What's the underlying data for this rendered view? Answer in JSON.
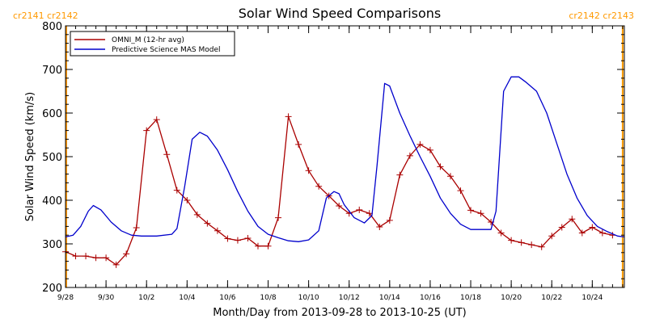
{
  "chart_data": {
    "type": "line",
    "title": "Solar Wind Speed Comparisons",
    "xlabel": "Month/Day from 2013-09-28 to 2013-10-25 (UT)",
    "ylabel": "Solar Wind Speed (km/s)",
    "xlim": [
      "2013-09-28T00:00",
      "2013-10-25T14:00"
    ],
    "ylim": [
      200,
      800
    ],
    "x_ticks": [
      {
        "date": "2013-09-28",
        "label": "9/28"
      },
      {
        "date": "2013-09-30",
        "label": "9/30"
      },
      {
        "date": "2013-10-02",
        "label": "10/2"
      },
      {
        "date": "2013-10-04",
        "label": "10/4"
      },
      {
        "date": "2013-10-06",
        "label": "10/6"
      },
      {
        "date": "2013-10-08",
        "label": "10/8"
      },
      {
        "date": "2013-10-10",
        "label": "10/10"
      },
      {
        "date": "2013-10-12",
        "label": "10/12"
      },
      {
        "date": "2013-10-14",
        "label": "10/14"
      },
      {
        "date": "2013-10-16",
        "label": "10/16"
      },
      {
        "date": "2013-10-18",
        "label": "10/18"
      },
      {
        "date": "2013-10-20",
        "label": "10/20"
      },
      {
        "date": "2013-10-22",
        "label": "10/22"
      },
      {
        "date": "2013-10-24",
        "label": "10/24"
      }
    ],
    "y_ticks": [
      200,
      300,
      400,
      500,
      600,
      700,
      800
    ],
    "grid": false,
    "legend_position": "top-left",
    "carrington_markers": [
      {
        "date": "2013-09-28T00:00",
        "label": "cr2141 cr2142",
        "label_side": "left",
        "color": "#ff9900"
      },
      {
        "date": "2013-10-25T12:00",
        "label": "cr2142 cr2143",
        "label_side": "right",
        "color": "#ff9900"
      }
    ],
    "series": [
      {
        "name": "OMNI_M (12-hr avg)",
        "color": "#aa0000",
        "marker": "plus",
        "points": [
          [
            "2013-09-28T00:00",
            282
          ],
          [
            "2013-09-28T12:00",
            272
          ],
          [
            "2013-09-29T00:00",
            272
          ],
          [
            "2013-09-29T12:00",
            268
          ],
          [
            "2013-09-30T00:00",
            268
          ],
          [
            "2013-09-30T12:00",
            252
          ],
          [
            "2013-10-01T00:00",
            277
          ],
          [
            "2013-10-01T12:00",
            337
          ],
          [
            "2013-10-02T00:00",
            560
          ],
          [
            "2013-10-02T12:00",
            585
          ],
          [
            "2013-10-03T00:00",
            505
          ],
          [
            "2013-10-03T12:00",
            423
          ],
          [
            "2013-10-04T00:00",
            400
          ],
          [
            "2013-10-04T12:00",
            367
          ],
          [
            "2013-10-05T00:00",
            347
          ],
          [
            "2013-10-05T12:00",
            330
          ],
          [
            "2013-10-06T00:00",
            312
          ],
          [
            "2013-10-06T12:00",
            308
          ],
          [
            "2013-10-07T00:00",
            313
          ],
          [
            "2013-10-07T12:00",
            295
          ],
          [
            "2013-10-08T00:00",
            295
          ],
          [
            "2013-10-08T12:00",
            360
          ],
          [
            "2013-10-09T00:00",
            592
          ],
          [
            "2013-10-09T12:00",
            528
          ],
          [
            "2013-10-10T00:00",
            468
          ],
          [
            "2013-10-10T12:00",
            432
          ],
          [
            "2013-10-11T00:00",
            410
          ],
          [
            "2013-10-11T12:00",
            387
          ],
          [
            "2013-10-12T00:00",
            370
          ],
          [
            "2013-10-12T12:00",
            378
          ],
          [
            "2013-10-13T00:00",
            370
          ],
          [
            "2013-10-13T12:00",
            339
          ],
          [
            "2013-10-14T00:00",
            354
          ],
          [
            "2013-10-14T12:00",
            458
          ],
          [
            "2013-10-15T00:00",
            502
          ],
          [
            "2013-10-15T12:00",
            528
          ],
          [
            "2013-10-16T00:00",
            515
          ],
          [
            "2013-10-16T12:00",
            477
          ],
          [
            "2013-10-17T00:00",
            455
          ],
          [
            "2013-10-17T12:00",
            422
          ],
          [
            "2013-10-18T00:00",
            377
          ],
          [
            "2013-10-18T12:00",
            370
          ],
          [
            "2013-10-19T00:00",
            350
          ],
          [
            "2013-10-19T12:00",
            325
          ],
          [
            "2013-10-20T00:00",
            308
          ],
          [
            "2013-10-20T12:00",
            303
          ],
          [
            "2013-10-21T00:00",
            298
          ],
          [
            "2013-10-21T12:00",
            293
          ],
          [
            "2013-10-22T00:00",
            318
          ],
          [
            "2013-10-22T12:00",
            338
          ],
          [
            "2013-10-23T00:00",
            357
          ],
          [
            "2013-10-23T12:00",
            325
          ],
          [
            "2013-10-24T00:00",
            338
          ],
          [
            "2013-10-24T12:00",
            325
          ],
          [
            "2013-10-25T00:00",
            320
          ]
        ]
      },
      {
        "name": "Predictive Science MAS Model",
        "color": "#0000cc",
        "marker": "none",
        "points": [
          [
            "2013-09-28T00:00",
            316
          ],
          [
            "2013-09-28T09:00",
            320
          ],
          [
            "2013-09-28T18:00",
            340
          ],
          [
            "2013-09-29T03:00",
            375
          ],
          [
            "2013-09-29T09:00",
            388
          ],
          [
            "2013-09-29T18:00",
            378
          ],
          [
            "2013-09-30T06:00",
            350
          ],
          [
            "2013-09-30T18:00",
            330
          ],
          [
            "2013-10-01T06:00",
            320
          ],
          [
            "2013-10-01T18:00",
            318
          ],
          [
            "2013-10-02T12:00",
            318
          ],
          [
            "2013-10-03T06:00",
            322
          ],
          [
            "2013-10-03T12:00",
            335
          ],
          [
            "2013-10-03T21:00",
            430
          ],
          [
            "2013-10-04T06:00",
            540
          ],
          [
            "2013-10-04T15:00",
            556
          ],
          [
            "2013-10-05T00:00",
            547
          ],
          [
            "2013-10-05T12:00",
            515
          ],
          [
            "2013-10-06T00:00",
            470
          ],
          [
            "2013-10-06T12:00",
            420
          ],
          [
            "2013-10-07T00:00",
            375
          ],
          [
            "2013-10-07T12:00",
            340
          ],
          [
            "2013-10-08T00:00",
            322
          ],
          [
            "2013-10-08T12:00",
            314
          ],
          [
            "2013-10-09T00:00",
            307
          ],
          [
            "2013-10-09T12:00",
            305
          ],
          [
            "2013-10-10T00:00",
            309
          ],
          [
            "2013-10-10T12:00",
            330
          ],
          [
            "2013-10-10T21:00",
            405
          ],
          [
            "2013-10-11T06:00",
            420
          ],
          [
            "2013-10-11T12:00",
            415
          ],
          [
            "2013-10-11T18:00",
            390
          ],
          [
            "2013-10-12T06:00",
            360
          ],
          [
            "2013-10-12T18:00",
            348
          ],
          [
            "2013-10-13T03:00",
            365
          ],
          [
            "2013-10-13T09:00",
            480
          ],
          [
            "2013-10-13T18:00",
            668
          ],
          [
            "2013-10-14T00:00",
            662
          ],
          [
            "2013-10-14T12:00",
            600
          ],
          [
            "2013-10-15T00:00",
            548
          ],
          [
            "2013-10-15T12:00",
            500
          ],
          [
            "2013-10-16T00:00",
            455
          ],
          [
            "2013-10-16T12:00",
            405
          ],
          [
            "2013-10-17T00:00",
            370
          ],
          [
            "2013-10-17T12:00",
            345
          ],
          [
            "2013-10-18T00:00",
            333
          ],
          [
            "2013-10-18T12:00",
            333
          ],
          [
            "2013-10-19T00:00",
            333
          ],
          [
            "2013-10-19T06:00",
            375
          ],
          [
            "2013-10-19T15:00",
            650
          ],
          [
            "2013-10-20T00:00",
            683
          ],
          [
            "2013-10-20T09:00",
            683
          ],
          [
            "2013-10-20T18:00",
            670
          ],
          [
            "2013-10-21T06:00",
            650
          ],
          [
            "2013-10-21T18:00",
            600
          ],
          [
            "2013-10-22T06:00",
            530
          ],
          [
            "2013-10-22T18:00",
            460
          ],
          [
            "2013-10-23T06:00",
            405
          ],
          [
            "2013-10-23T18:00",
            365
          ],
          [
            "2013-10-24T06:00",
            340
          ],
          [
            "2013-10-24T18:00",
            328
          ],
          [
            "2013-10-25T06:00",
            318
          ],
          [
            "2013-10-25T14:00",
            316
          ]
        ]
      }
    ]
  }
}
